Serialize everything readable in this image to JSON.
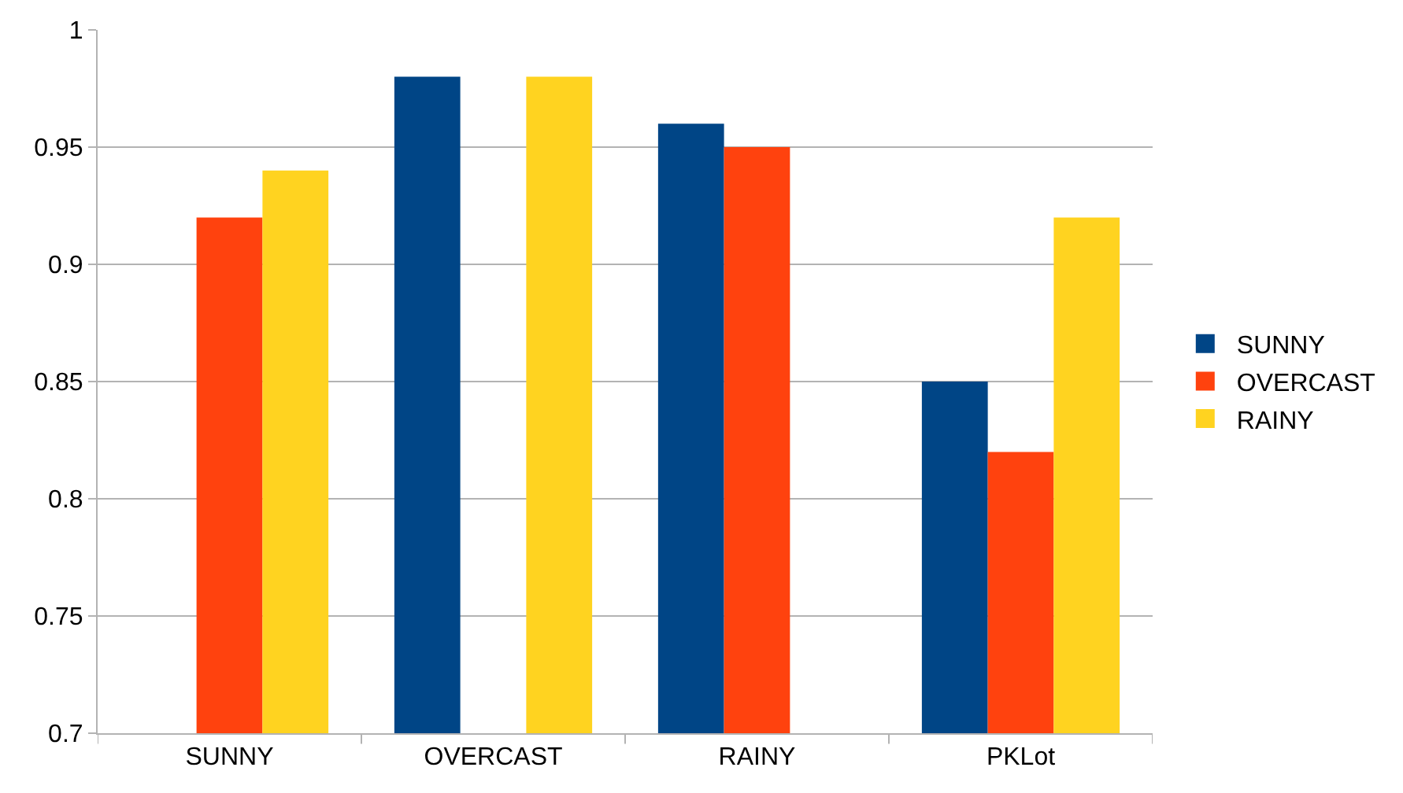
{
  "chart_data": {
    "type": "bar",
    "categories": [
      "SUNNY",
      "OVERCAST",
      "RAINY",
      "PKLot"
    ],
    "series": [
      {
        "name": "SUNNY",
        "color": "#004586",
        "values": [
          null,
          0.98,
          0.96,
          0.85
        ]
      },
      {
        "name": "OVERCAST",
        "color": "#ff420e",
        "values": [
          0.92,
          null,
          0.95,
          0.82
        ]
      },
      {
        "name": "RAINY",
        "color": "#ffd320",
        "values": [
          0.94,
          0.98,
          null,
          0.92
        ]
      }
    ],
    "ylim": [
      0.7,
      1
    ],
    "yticks": [
      0.7,
      0.75,
      0.8,
      0.85,
      0.9,
      0.95,
      1
    ],
    "grid": "y",
    "legend": "right"
  }
}
